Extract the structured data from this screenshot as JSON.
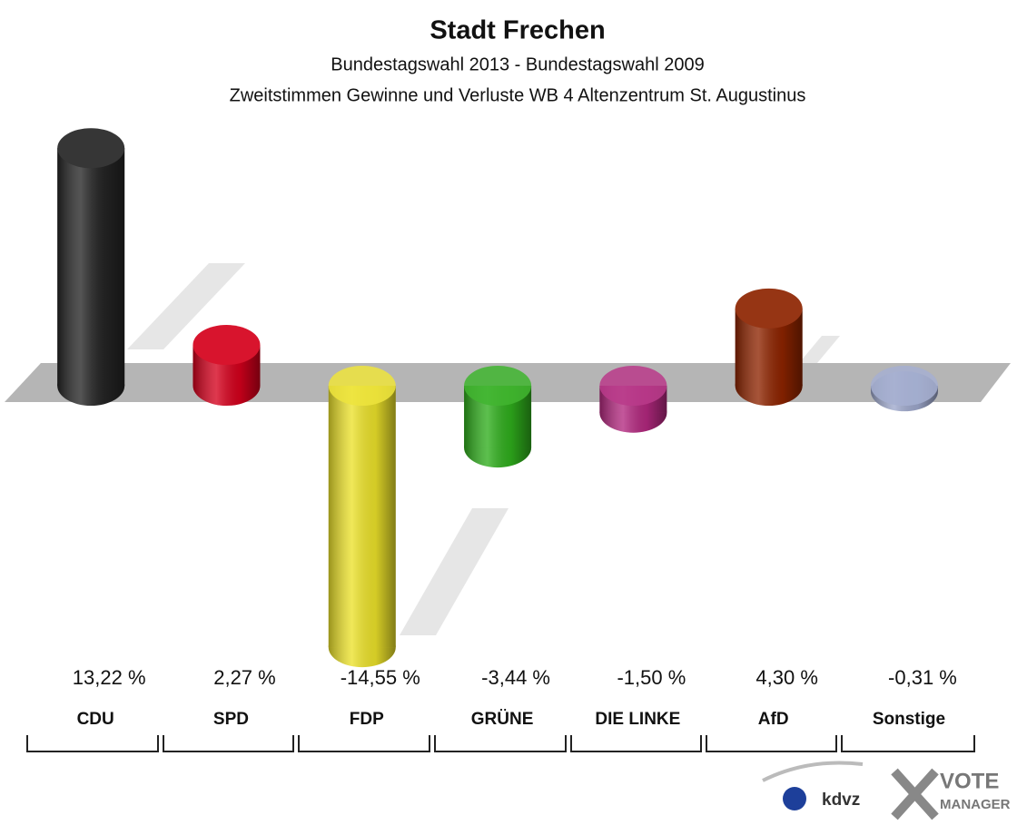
{
  "chart_data": {
    "type": "bar",
    "title": "Stadt Frechen",
    "subtitle": "Bundestagswahl 2013 - Bundestagswahl 2009",
    "subtitle2": "Zweitstimmen Gewinne und Verluste WB 4 Altenzentrum St. Augustinus",
    "categories": [
      "CDU",
      "SPD",
      "FDP",
      "GRÜNE",
      "DIE LINKE",
      "AfD",
      "Sonstige"
    ],
    "values": [
      13.22,
      2.27,
      -14.55,
      -3.44,
      -1.5,
      4.3,
      -0.31
    ],
    "value_labels": [
      "13,22 %",
      "2,27 %",
      "-14,55 %",
      "-3,44 %",
      "-1,50 %",
      "4,30 %",
      "-0,31 %"
    ],
    "colors": [
      "#252525",
      "#d5001c",
      "#ece22a",
      "#2fae1c",
      "#b3287f",
      "#8e2400",
      "#9ea8cc"
    ]
  },
  "footer": {
    "logo1": "kdvz",
    "logo2": "VOTE",
    "logo3": "MANAGER"
  }
}
